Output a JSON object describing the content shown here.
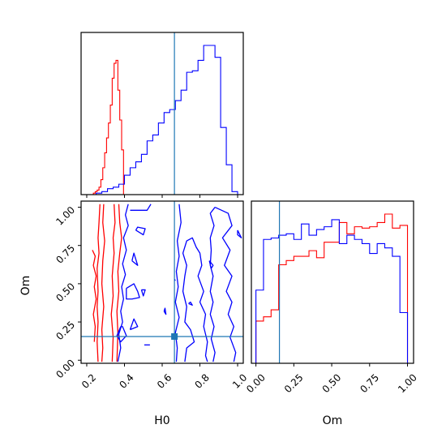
{
  "chart_data": [
    {
      "type": "histogram",
      "panel": "top-left",
      "parameter": "H0",
      "xlim": [
        0.17,
        1.03
      ],
      "truth_line": {
        "x": 0.665,
        "color": "#1f77b4"
      },
      "series": [
        {
          "color": "#ff0000",
          "bin_edges": [
            0.225,
            0.235,
            0.245,
            0.255,
            0.265,
            0.275,
            0.285,
            0.295,
            0.305,
            0.315,
            0.325,
            0.335,
            0.345,
            0.355,
            0.365,
            0.375,
            0.385,
            0.395
          ],
          "heights": [
            0.0,
            0.01,
            0.02,
            0.03,
            0.05,
            0.1,
            0.18,
            0.28,
            0.38,
            0.48,
            0.6,
            0.78,
            0.88,
            0.9,
            0.7,
            0.5,
            0.3
          ]
        },
        {
          "color": "#0000ff",
          "bin_edges": [
            0.22,
            0.25,
            0.28,
            0.31,
            0.34,
            0.37,
            0.4,
            0.43,
            0.46,
            0.49,
            0.52,
            0.55,
            0.58,
            0.61,
            0.64,
            0.67,
            0.7,
            0.73,
            0.76,
            0.79,
            0.82,
            0.85,
            0.88,
            0.91,
            0.94,
            0.97,
            1.0
          ],
          "heights": [
            0.0,
            0.01,
            0.02,
            0.04,
            0.05,
            0.07,
            0.13,
            0.18,
            0.22,
            0.27,
            0.36,
            0.4,
            0.48,
            0.55,
            0.57,
            0.63,
            0.7,
            0.82,
            0.83,
            0.9,
            1.0,
            1.0,
            0.92,
            0.45,
            0.2,
            0.02
          ]
        }
      ]
    },
    {
      "type": "contour",
      "panel": "bottom-left",
      "xlabel": "H0",
      "ylabel": "Om",
      "xlim": [
        0.17,
        1.03
      ],
      "ylim": [
        -0.02,
        1.04
      ],
      "xticks": [
        0.2,
        0.4,
        0.6,
        0.8,
        1.0
      ],
      "xtick_labels": [
        "0.2",
        "0.4",
        "0.6",
        "0.8",
        "1.0"
      ],
      "yticks": [
        0.0,
        0.25,
        0.5,
        0.75,
        1.0
      ],
      "ytick_labels": [
        "0.00",
        "0.25",
        "0.50",
        "0.75",
        "1.00"
      ],
      "truth_point": {
        "x": 0.665,
        "y": 0.155,
        "color": "#1f77b4"
      },
      "red_contours": [
        [
          [
            0.27,
            1.02
          ],
          [
            0.265,
            0.9
          ],
          [
            0.26,
            0.8
          ],
          [
            0.265,
            0.7
          ],
          [
            0.255,
            0.6
          ],
          [
            0.26,
            0.45
          ],
          [
            0.255,
            0.35
          ],
          [
            0.26,
            0.25
          ],
          [
            0.255,
            0.12
          ],
          [
            0.26,
            -0.01
          ]
        ],
        [
          [
            0.29,
            1.02
          ],
          [
            0.285,
            0.9
          ],
          [
            0.295,
            0.78
          ],
          [
            0.285,
            0.65
          ],
          [
            0.28,
            0.5
          ],
          [
            0.29,
            0.35
          ],
          [
            0.28,
            0.2
          ],
          [
            0.285,
            0.08
          ],
          [
            0.28,
            -0.01
          ]
        ],
        [
          [
            0.345,
            1.02
          ],
          [
            0.35,
            0.9
          ],
          [
            0.34,
            0.8
          ],
          [
            0.345,
            0.7
          ],
          [
            0.335,
            0.55
          ],
          [
            0.34,
            0.42
          ],
          [
            0.33,
            0.3
          ],
          [
            0.34,
            0.15
          ],
          [
            0.335,
            -0.01
          ]
        ],
        [
          [
            0.37,
            1.02
          ],
          [
            0.375,
            0.9
          ],
          [
            0.385,
            0.8
          ],
          [
            0.375,
            0.7
          ],
          [
            0.365,
            0.58
          ],
          [
            0.37,
            0.45
          ],
          [
            0.36,
            0.32
          ],
          [
            0.365,
            0.18
          ],
          [
            0.36,
            -0.01
          ]
        ],
        [
          [
            0.23,
            0.72
          ],
          [
            0.245,
            0.68
          ],
          [
            0.235,
            0.62
          ],
          [
            0.25,
            0.55
          ],
          [
            0.24,
            0.48
          ],
          [
            0.25,
            0.4
          ],
          [
            0.235,
            0.3
          ],
          [
            0.245,
            0.22
          ],
          [
            0.24,
            0.12
          ]
        ]
      ],
      "blue_contours": [
        [
          [
            0.42,
            1.02
          ],
          [
            0.405,
            0.95
          ],
          [
            0.42,
            0.88
          ],
          [
            0.395,
            0.8
          ],
          [
            0.41,
            0.72
          ],
          [
            0.39,
            0.63
          ],
          [
            0.405,
            0.56
          ],
          [
            0.385,
            0.48
          ],
          [
            0.395,
            0.4
          ],
          [
            0.38,
            0.32
          ],
          [
            0.39,
            0.25
          ],
          [
            0.37,
            0.17
          ],
          [
            0.38,
            0.08
          ],
          [
            0.365,
            -0.01
          ]
        ],
        [
          [
            0.43,
            0.98
          ],
          [
            0.52,
            0.98
          ],
          [
            0.54,
            1.02
          ]
        ],
        [
          [
            0.38,
            0.22
          ],
          [
            0.36,
            0.16
          ],
          [
            0.38,
            0.12
          ],
          [
            0.41,
            0.16
          ],
          [
            0.39,
            0.22
          ],
          [
            0.38,
            0.22
          ]
        ],
        [
          [
            0.41,
            0.47
          ],
          [
            0.41,
            0.4
          ],
          [
            0.44,
            0.4
          ],
          [
            0.48,
            0.41
          ],
          [
            0.47,
            0.45
          ],
          [
            0.45,
            0.5
          ],
          [
            0.41,
            0.47
          ]
        ],
        [
          [
            0.43,
            0.2
          ],
          [
            0.47,
            0.22
          ],
          [
            0.45,
            0.27
          ],
          [
            0.43,
            0.2
          ]
        ],
        [
          [
            0.49,
            0.46
          ],
          [
            0.5,
            0.42
          ],
          [
            0.51,
            0.46
          ],
          [
            0.49,
            0.46
          ]
        ],
        [
          [
            0.46,
            0.85
          ],
          [
            0.5,
            0.82
          ],
          [
            0.51,
            0.86
          ],
          [
            0.47,
            0.87
          ],
          [
            0.46,
            0.85
          ]
        ],
        [
          [
            0.44,
            0.65
          ],
          [
            0.47,
            0.62
          ],
          [
            0.45,
            0.7
          ],
          [
            0.44,
            0.65
          ]
        ],
        [
          [
            0.61,
            0.32
          ],
          [
            0.62,
            0.3
          ],
          [
            0.615,
            0.34
          ],
          [
            0.61,
            0.32
          ]
        ],
        [
          [
            0.505,
            0.1
          ],
          [
            0.535,
            0.1
          ]
        ],
        [
          [
            0.69,
            1.02
          ],
          [
            0.7,
            0.9
          ],
          [
            0.68,
            0.78
          ],
          [
            0.69,
            0.68
          ],
          [
            0.675,
            0.58
          ],
          [
            0.685,
            0.48
          ],
          [
            0.67,
            0.38
          ],
          [
            0.69,
            0.28
          ],
          [
            0.67,
            0.18
          ],
          [
            0.68,
            0.08
          ],
          [
            0.675,
            -0.01
          ]
        ],
        [
          [
            0.72,
            -0.01
          ],
          [
            0.73,
            0.08
          ],
          [
            0.77,
            0.12
          ],
          [
            0.75,
            0.2
          ],
          [
            0.72,
            0.25
          ],
          [
            0.73,
            0.35
          ],
          [
            0.71,
            0.45
          ],
          [
            0.72,
            0.55
          ],
          [
            0.73,
            0.62
          ],
          [
            0.71,
            0.7
          ],
          [
            0.73,
            0.78
          ],
          [
            0.76,
            0.8
          ],
          [
            0.78,
            0.74
          ],
          [
            0.8,
            0.7
          ],
          [
            0.81,
            0.62
          ],
          [
            0.79,
            0.55
          ],
          [
            0.82,
            0.45
          ],
          [
            0.8,
            0.38
          ],
          [
            0.83,
            0.3
          ],
          [
            0.82,
            0.22
          ],
          [
            0.84,
            0.12
          ],
          [
            0.83,
            0.03
          ],
          [
            0.84,
            -0.01
          ]
        ],
        [
          [
            0.88,
            1.0
          ],
          [
            0.95,
            0.96
          ],
          [
            0.97,
            0.88
          ],
          [
            0.92,
            0.8
          ],
          [
            0.96,
            0.72
          ],
          [
            0.93,
            0.62
          ],
          [
            0.97,
            0.55
          ],
          [
            0.94,
            0.45
          ],
          [
            0.97,
            0.38
          ],
          [
            0.95,
            0.3
          ],
          [
            0.98,
            0.22
          ],
          [
            0.96,
            0.15
          ],
          [
            0.99,
            0.05
          ],
          [
            0.98,
            -0.01
          ]
        ],
        [
          [
            0.88,
            1.0
          ],
          [
            0.855,
            0.96
          ],
          [
            0.875,
            0.88
          ],
          [
            0.855,
            0.8
          ],
          [
            0.86,
            0.72
          ],
          [
            0.855,
            0.62
          ],
          [
            0.87,
            0.55
          ],
          [
            0.855,
            0.45
          ],
          [
            0.87,
            0.38
          ],
          [
            0.855,
            0.3
          ],
          [
            0.875,
            0.22
          ],
          [
            0.86,
            0.14
          ],
          [
            0.88,
            0.05
          ],
          [
            0.87,
            -0.01
          ]
        ],
        [
          [
            1.0,
            0.85
          ],
          [
            1.02,
            0.8
          ],
          [
            1.0,
            0.82
          ],
          [
            1.0,
            0.85
          ]
        ],
        [
          [
            0.85,
            0.65
          ],
          [
            0.87,
            0.62
          ],
          [
            0.86,
            0.6
          ],
          [
            0.85,
            0.65
          ]
        ],
        [
          [
            0.74,
            0.37
          ],
          [
            0.76,
            0.36
          ],
          [
            0.75,
            0.38
          ],
          [
            0.74,
            0.37
          ]
        ],
        [
          [
            0.665,
            0.53
          ],
          [
            0.67,
            0.52
          ]
        ]
      ]
    },
    {
      "type": "histogram",
      "panel": "bottom-right",
      "parameter": "Om",
      "xlabel": "Om",
      "xlim": [
        -0.03,
        1.04
      ],
      "xticks": [
        0.0,
        0.25,
        0.5,
        0.75,
        1.0
      ],
      "xtick_labels": [
        "0.00",
        "0.25",
        "0.50",
        "0.75",
        "1.00"
      ],
      "truth_line": {
        "x": 0.155,
        "color": "#1f77b4"
      },
      "series": [
        {
          "color": "#ff0000",
          "bin_edges": [
            0.0,
            0.05,
            0.1,
            0.15,
            0.2,
            0.25,
            0.3,
            0.35,
            0.4,
            0.45,
            0.5,
            0.55,
            0.6,
            0.65,
            0.7,
            0.75,
            0.8,
            0.85,
            0.9,
            0.95,
            1.0
          ],
          "heights": [
            0.3,
            0.33,
            0.38,
            0.7,
            0.73,
            0.76,
            0.76,
            0.8,
            0.75,
            0.86,
            0.86,
            1.0,
            0.92,
            0.97,
            0.96,
            0.97,
            1.0,
            1.06,
            0.96,
            0.98
          ]
        },
        {
          "color": "#0000ff",
          "bin_edges": [
            0.0,
            0.05,
            0.1,
            0.15,
            0.2,
            0.25,
            0.3,
            0.35,
            0.4,
            0.45,
            0.5,
            0.55,
            0.6,
            0.65,
            0.7,
            0.75,
            0.8,
            0.85,
            0.9,
            0.95,
            1.0
          ],
          "heights": [
            0.52,
            0.88,
            0.89,
            0.91,
            0.92,
            0.88,
            0.99,
            0.91,
            0.95,
            0.97,
            1.02,
            0.85,
            0.91,
            0.88,
            0.85,
            0.78,
            0.85,
            0.82,
            0.76,
            0.36
          ]
        }
      ]
    }
  ]
}
